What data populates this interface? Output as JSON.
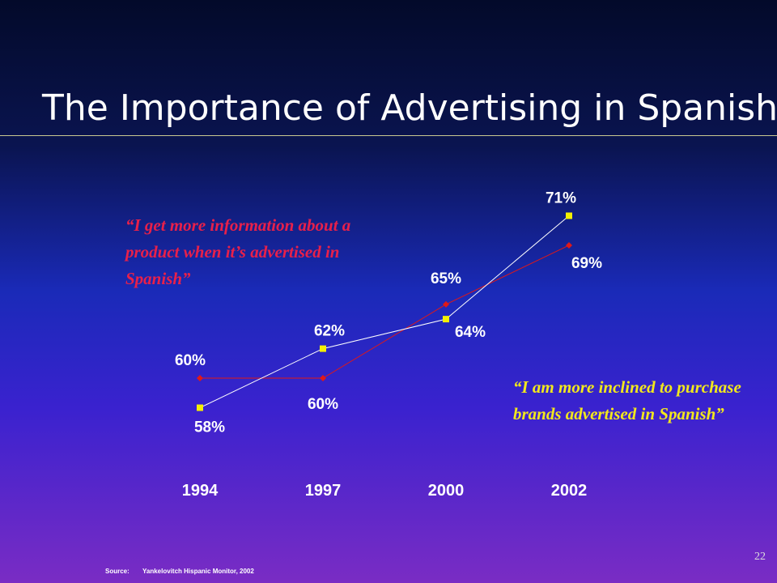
{
  "title": "The Importance of Advertising in Spanish",
  "quotes": {
    "red": "“I get more information about a product when it’s advertised in Spanish”",
    "yellow": "“I am more inclined to purchase brands advertised in Spanish”"
  },
  "source": {
    "label": "Source:",
    "text": "Yankelovitch Hispanic Monitor, 2002"
  },
  "page_number": "22",
  "colors": {
    "red_series": "#e01818",
    "yellow_series": "#f4f000",
    "yellow_line": "#ffffff"
  },
  "chart_data": {
    "type": "line",
    "categories": [
      "1994",
      "1997",
      "2000",
      "2002"
    ],
    "series": [
      {
        "key": "red",
        "values": [
          60,
          60,
          65,
          69
        ],
        "labels": [
          "60%",
          "60%",
          "65%",
          "69%"
        ],
        "marker": "diamond"
      },
      {
        "key": "yellow",
        "values": [
          58,
          62,
          64,
          71
        ],
        "labels": [
          "58%",
          "62%",
          "64%",
          "71%"
        ],
        "marker": "square"
      }
    ],
    "ylim": [
      56,
      73
    ],
    "xlabel": "",
    "ylabel": "",
    "grid": false,
    "legend": "none"
  }
}
